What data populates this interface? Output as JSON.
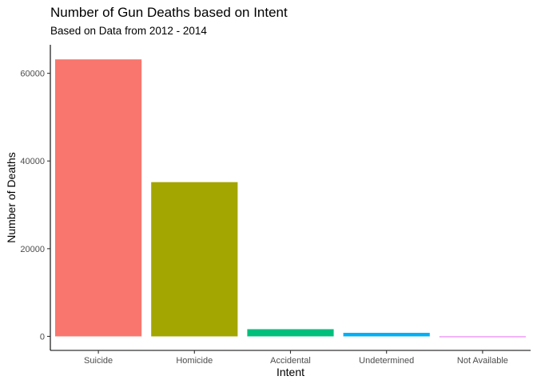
{
  "chart_data": {
    "type": "bar",
    "title": "Number of Gun Deaths based on Intent",
    "subtitle": "Based on Data from 2012 - 2014",
    "xlabel": "Intent",
    "ylabel": "Number of Deaths",
    "categories": [
      "Suicide",
      "Homicide",
      "Accidental",
      "Undetermined",
      "Not Available"
    ],
    "values": [
      63175,
      35176,
      1639,
      807,
      1
    ],
    "colors": [
      "#F8766D",
      "#A3A500",
      "#00BF7D",
      "#00B0F6",
      "#E76BF3"
    ],
    "ylim": [
      -3200,
      66500
    ],
    "yticks": [
      0,
      20000,
      40000,
      60000
    ],
    "grid": false,
    "legend": "none"
  }
}
